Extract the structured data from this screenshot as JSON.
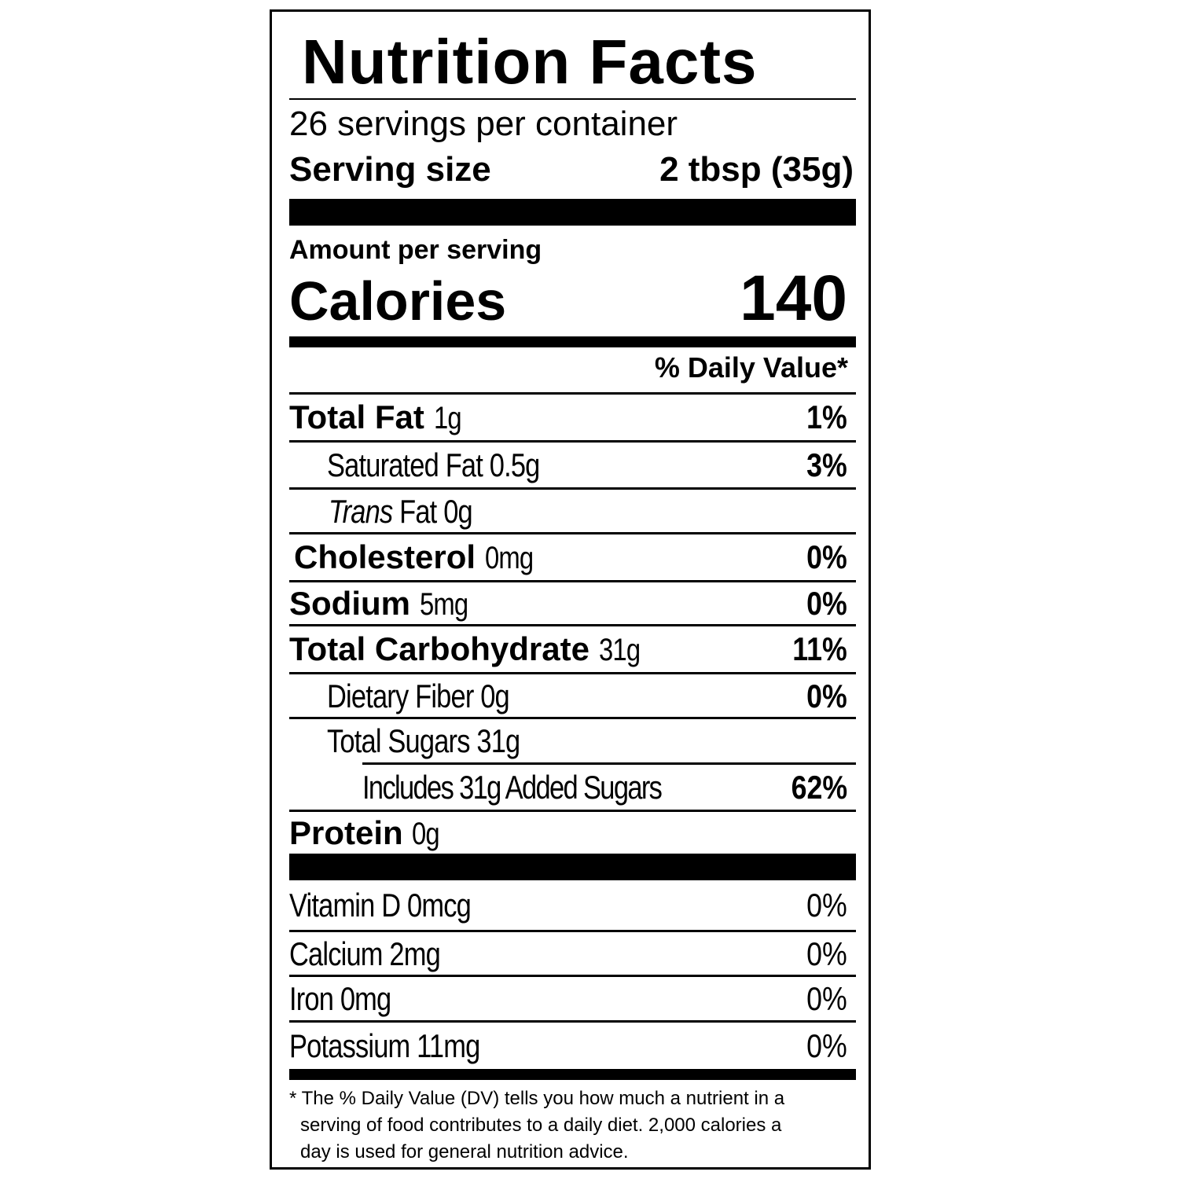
{
  "title": "Nutrition Facts",
  "servings_per_container": "26 servings per container",
  "serving_size": {
    "label": "Serving size",
    "value": "2 tbsp (35g)"
  },
  "amount_per_serving": "Amount per serving",
  "calories": {
    "label": "Calories",
    "value": "140"
  },
  "daily_value_header": "% Daily Value*",
  "nutrients": [
    {
      "name": "Total Fat",
      "amount": "1g",
      "dv": "1%"
    },
    {
      "name": "Saturated Fat",
      "amount": "0.5g",
      "dv": "3%"
    },
    {
      "name_italic": "Trans",
      "name": "Fat",
      "amount": "0g"
    },
    {
      "name": "Cholesterol",
      "amount": "0mg",
      "dv": "0%"
    },
    {
      "name": "Sodium",
      "amount": "5mg",
      "dv": "0%"
    },
    {
      "name": "Total Carbohydrate",
      "amount": "31g",
      "dv": "11%"
    },
    {
      "name": "Dietary Fiber",
      "amount": "0g",
      "dv": "0%"
    },
    {
      "name": "Total Sugars",
      "amount": "31g"
    },
    {
      "name": "Includes 31g Added Sugars",
      "dv": "62%"
    },
    {
      "name": "Protein",
      "amount": "0g"
    }
  ],
  "vitamins": [
    {
      "text": "Vitamin D 0mcg",
      "dv": "0%"
    },
    {
      "text": "Calcium 2mg",
      "dv": "0%"
    },
    {
      "text": "Iron 0mg",
      "dv": "0%"
    },
    {
      "text": "Potassium 11mg",
      "dv": "0%"
    }
  ],
  "footnote": [
    "* The % Daily Value (DV) tells you how much a nutrient in a",
    "serving of food contributes to a daily diet. 2,000 calories a",
    "day is used for general nutrition advice."
  ]
}
